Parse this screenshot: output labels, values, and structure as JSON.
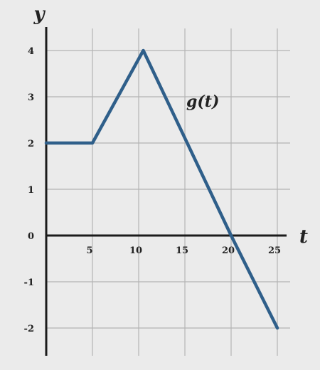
{
  "chart_data": {
    "type": "line",
    "xlabel": "t",
    "ylabel": "y",
    "xlim": [
      0,
      25
    ],
    "ylim": [
      -2,
      4
    ],
    "x_ticks": [
      {
        "value": 5,
        "label": "5"
      },
      {
        "value": 10,
        "label": "10"
      },
      {
        "value": 15,
        "label": "15"
      },
      {
        "value": 20,
        "label": "20"
      },
      {
        "value": 25,
        "label": "25"
      }
    ],
    "y_ticks": [
      {
        "value": 4,
        "label": "4"
      },
      {
        "value": 3,
        "label": "3"
      },
      {
        "value": 2,
        "label": "2"
      },
      {
        "value": 1,
        "label": "1"
      },
      {
        "value": 0,
        "label": "0"
      },
      {
        "value": -1,
        "label": "-1"
      },
      {
        "value": -2,
        "label": "-2"
      }
    ],
    "grid": true,
    "series": [
      {
        "name": "g(t)",
        "color": "#2f5f8a",
        "x": [
          0,
          5,
          10.5,
          20,
          25
        ],
        "y": [
          2,
          2,
          4,
          0,
          -2
        ]
      }
    ]
  }
}
